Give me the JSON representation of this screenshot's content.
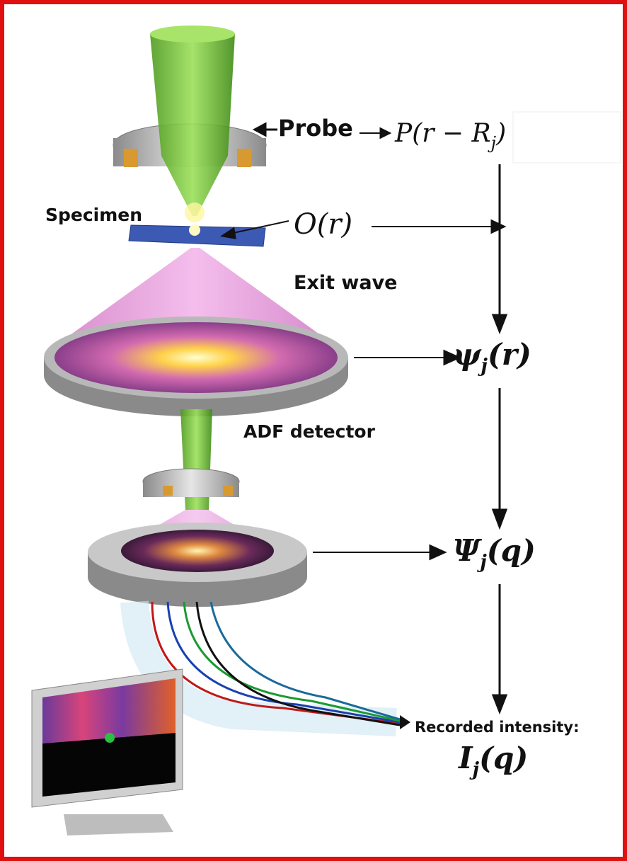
{
  "labels": {
    "probe": "Probe",
    "specimen": "Specimen",
    "exit_wave": "Exit wave",
    "adf_detector": "ADF detector",
    "recorded_intensity": "Recorded intensity:"
  },
  "formulas": {
    "probe": [
      "P(r − R",
      "j",
      ")"
    ],
    "object": "O(r)",
    "exit_wave": [
      "ψ",
      "j",
      "(r)"
    ],
    "diffraction": [
      "Ψ",
      "j",
      "(q)"
    ],
    "intensity": [
      "I",
      "j",
      "(q)"
    ]
  }
}
